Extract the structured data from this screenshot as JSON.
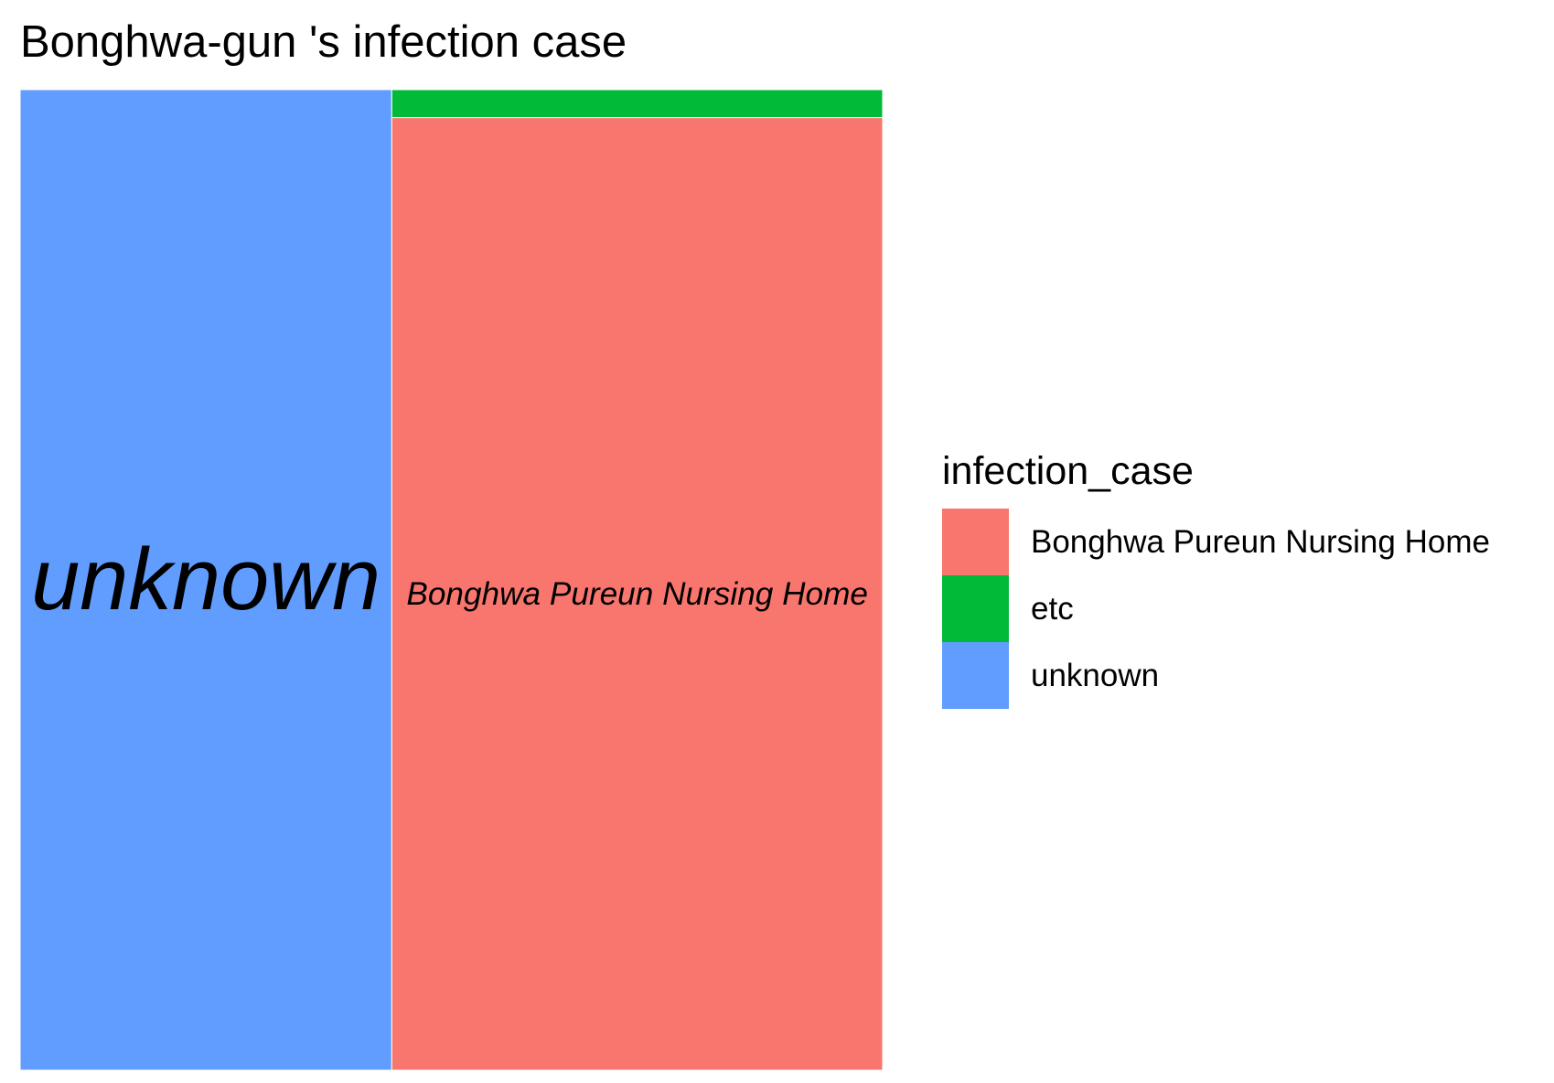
{
  "chart_data": {
    "type": "treemap",
    "title": "Bonghwa-gun 's infection case",
    "legend_title": "infection_case",
    "legend_position": "right",
    "categories": [
      "Bonghwa Pureun Nursing Home",
      "etc",
      "unknown"
    ],
    "values": [
      68,
      2,
      53
    ],
    "colors": [
      "#F8766D",
      "#00BA38",
      "#619CFF"
    ],
    "tile_labels": [
      "Bonghwa Pureun Nursing Home",
      "",
      "unknown"
    ]
  }
}
